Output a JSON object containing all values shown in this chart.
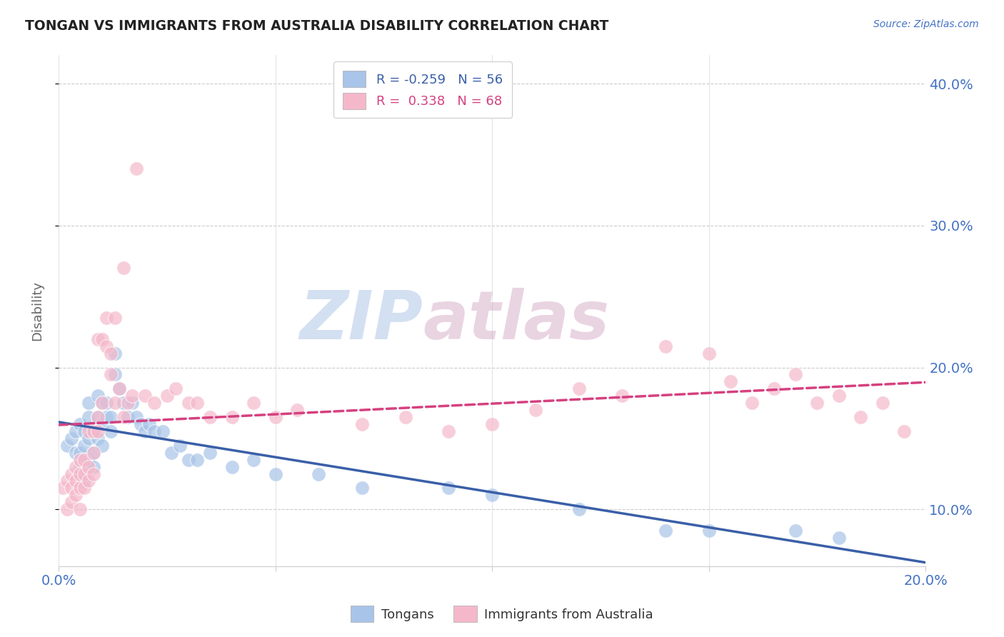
{
  "title": "TONGAN VS IMMIGRANTS FROM AUSTRALIA DISABILITY CORRELATION CHART",
  "source": "Source: ZipAtlas.com",
  "ylabel": "Disability",
  "xlim": [
    0.0,
    0.2
  ],
  "ylim": [
    0.06,
    0.42
  ],
  "R_blue": -0.259,
  "N_blue": 56,
  "R_pink": 0.338,
  "N_pink": 68,
  "blue_color": "#a8c4e8",
  "pink_color": "#f5b8cb",
  "blue_line_color": "#3a5fa8",
  "pink_line_color": "#d64080",
  "watermark_zip": "ZIP",
  "watermark_atlas": "atlas",
  "legend_label_blue": "Tongans",
  "legend_label_pink": "Immigrants from Australia",
  "blue_scatter_x": [
    0.002,
    0.003,
    0.004,
    0.004,
    0.005,
    0.005,
    0.005,
    0.006,
    0.006,
    0.006,
    0.007,
    0.007,
    0.007,
    0.007,
    0.008,
    0.008,
    0.008,
    0.009,
    0.009,
    0.009,
    0.01,
    0.01,
    0.01,
    0.011,
    0.011,
    0.012,
    0.012,
    0.013,
    0.013,
    0.014,
    0.015,
    0.016,
    0.017,
    0.018,
    0.019,
    0.02,
    0.021,
    0.022,
    0.024,
    0.026,
    0.028,
    0.03,
    0.032,
    0.035,
    0.04,
    0.045,
    0.05,
    0.06,
    0.07,
    0.09,
    0.1,
    0.12,
    0.14,
    0.15,
    0.17,
    0.18
  ],
  "blue_scatter_y": [
    0.145,
    0.15,
    0.14,
    0.155,
    0.13,
    0.14,
    0.16,
    0.12,
    0.145,
    0.155,
    0.135,
    0.15,
    0.165,
    0.175,
    0.13,
    0.14,
    0.155,
    0.15,
    0.165,
    0.18,
    0.145,
    0.16,
    0.175,
    0.165,
    0.175,
    0.165,
    0.155,
    0.21,
    0.195,
    0.185,
    0.175,
    0.165,
    0.175,
    0.165,
    0.16,
    0.155,
    0.16,
    0.155,
    0.155,
    0.14,
    0.145,
    0.135,
    0.135,
    0.14,
    0.13,
    0.135,
    0.125,
    0.125,
    0.115,
    0.115,
    0.11,
    0.1,
    0.085,
    0.085,
    0.085,
    0.08
  ],
  "pink_scatter_x": [
    0.001,
    0.002,
    0.002,
    0.003,
    0.003,
    0.003,
    0.004,
    0.004,
    0.004,
    0.005,
    0.005,
    0.005,
    0.005,
    0.006,
    0.006,
    0.006,
    0.007,
    0.007,
    0.007,
    0.008,
    0.008,
    0.008,
    0.009,
    0.009,
    0.009,
    0.01,
    0.01,
    0.011,
    0.011,
    0.012,
    0.012,
    0.013,
    0.013,
    0.014,
    0.015,
    0.015,
    0.016,
    0.017,
    0.018,
    0.02,
    0.022,
    0.025,
    0.027,
    0.03,
    0.032,
    0.035,
    0.04,
    0.045,
    0.05,
    0.055,
    0.07,
    0.08,
    0.09,
    0.1,
    0.11,
    0.12,
    0.13,
    0.14,
    0.15,
    0.155,
    0.16,
    0.165,
    0.17,
    0.175,
    0.18,
    0.185,
    0.19,
    0.195
  ],
  "pink_scatter_y": [
    0.115,
    0.1,
    0.12,
    0.105,
    0.115,
    0.125,
    0.11,
    0.12,
    0.13,
    0.1,
    0.115,
    0.125,
    0.135,
    0.115,
    0.125,
    0.135,
    0.12,
    0.13,
    0.155,
    0.125,
    0.14,
    0.155,
    0.155,
    0.165,
    0.22,
    0.175,
    0.22,
    0.215,
    0.235,
    0.195,
    0.21,
    0.235,
    0.175,
    0.185,
    0.165,
    0.27,
    0.175,
    0.18,
    0.34,
    0.18,
    0.175,
    0.18,
    0.185,
    0.175,
    0.175,
    0.165,
    0.165,
    0.175,
    0.165,
    0.17,
    0.16,
    0.165,
    0.155,
    0.16,
    0.17,
    0.185,
    0.18,
    0.215,
    0.21,
    0.19,
    0.175,
    0.185,
    0.195,
    0.175,
    0.18,
    0.165,
    0.175,
    0.155
  ]
}
